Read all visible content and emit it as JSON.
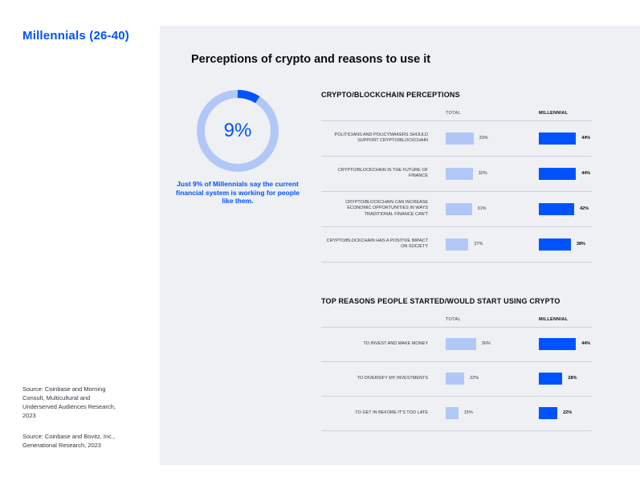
{
  "sidebar": {
    "title": "Millennials (26-40)",
    "sources": [
      "Source: Coinbase and Morning Consult, Multicultural and Underserved Audiences Research, 2023",
      "Source: Coinbase and Bovitz, Inc., Generational Research, 2023"
    ]
  },
  "panel": {
    "title": "Perceptions of crypto and reasons to use it"
  },
  "colors": {
    "accent": "#0052ff",
    "light_bar": "#b1c7f7",
    "panel_bg": "#eef0f3"
  },
  "donut": {
    "value": 9,
    "label": "9%",
    "caption": "Just 9% of Millennials say the current financial system is working for people like them."
  },
  "chart_data": [
    {
      "type": "bar",
      "title": "CRYPTO/BLOCKCHAIN PERCEPTIONS",
      "column_headers": [
        "TOTAL",
        "MILLENNIAL"
      ],
      "categories": [
        "POLITICIANS AND POLICYMAKERS SHOULD SUPPORT CRYPTO/BLOCKCHAIN",
        "CRYPTO/BLOCKCHAIN IS THE FUTURE OF FINANCE",
        "CRYPTO/BLOCKCHAIN CAN INCREASE ECONOMIC OPPORTUNITIES IN WAYS TRADITIONAL FINANCE CAN'T",
        "CRYPTO/BLOCKCHAIN HAS A POSITIVE IMPACT ON SOCIETY"
      ],
      "series": [
        {
          "name": "TOTAL",
          "values": [
            33,
            32,
            31,
            27
          ],
          "labels": [
            "33%",
            "32%",
            "31%",
            "27%"
          ]
        },
        {
          "name": "MILLENNIAL",
          "values": [
            44,
            44,
            42,
            38
          ],
          "labels": [
            "44%",
            "44%",
            "42%",
            "38%"
          ]
        }
      ]
    },
    {
      "type": "bar",
      "title": "TOP REASONS PEOPLE STARTED/WOULD START USING CRYPTO",
      "column_headers": [
        "TOTAL",
        "MILLENNIAL"
      ],
      "categories": [
        "TO INVEST AND MAKE MONEY",
        "TO DIVERSIFY MY INVESTMENTS",
        "TO GET IN BEFORE IT'S TOO LATE"
      ],
      "series": [
        {
          "name": "TOTAL",
          "values": [
            36,
            22,
            15
          ],
          "labels": [
            "36%",
            "22%",
            "15%"
          ]
        },
        {
          "name": "MILLENNIAL",
          "values": [
            44,
            28,
            22
          ],
          "labels": [
            "44%",
            "28%",
            "22%"
          ]
        }
      ]
    }
  ]
}
